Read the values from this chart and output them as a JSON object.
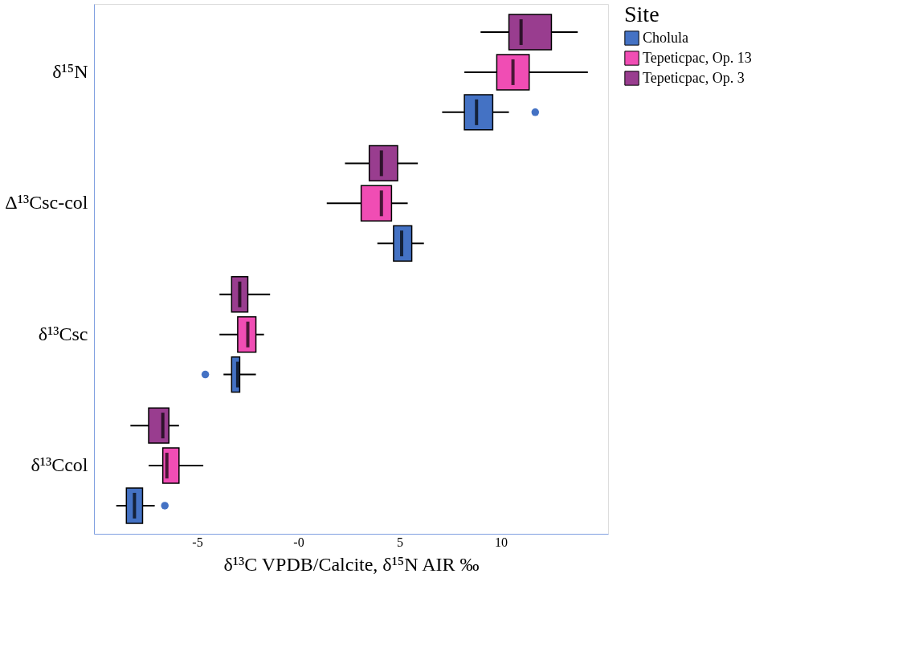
{
  "chart_data": {
    "type": "box",
    "orientation": "horizontal",
    "categories": [
      "δ¹⁵N",
      "Δ¹³Csc-col",
      "δ¹³Csc",
      "δ¹³Ccol"
    ],
    "xlabel": "δ¹³C VPDB/Calcite, δ¹⁵N AIR ‰",
    "legend_title": "Site",
    "legend": "right",
    "grid": false,
    "xlim": [
      -10.1,
      15.3
    ],
    "xticks": [
      -5,
      {
        "value": 0,
        "label": "-0"
      },
      5,
      10
    ],
    "series": [
      {
        "name": "Cholula",
        "color": "#4472c4",
        "boxes": [
          {
            "low": 7.1,
            "q1": 8.2,
            "median": 8.8,
            "q3": 9.6,
            "high": 10.4,
            "outliers": [
              11.7
            ]
          },
          {
            "low": 3.9,
            "q1": 4.7,
            "median": 5.1,
            "q3": 5.6,
            "high": 6.2
          },
          {
            "low": -3.7,
            "q1": -3.3,
            "median": -3.0,
            "q3": -2.9,
            "high": -2.1,
            "outliers": [
              -4.6
            ]
          },
          {
            "low": -9.0,
            "q1": -8.5,
            "median": -8.1,
            "q3": -7.7,
            "high": -7.1,
            "outliers": [
              -6.6
            ]
          }
        ]
      },
      {
        "name": "Tepeticpac, Op. 13",
        "color": "#f04db4",
        "boxes": [
          {
            "low": 8.2,
            "q1": 9.8,
            "median": 10.6,
            "q3": 11.4,
            "high": 14.3
          },
          {
            "low": 1.4,
            "q1": 3.1,
            "median": 4.1,
            "q3": 4.6,
            "high": 5.4
          },
          {
            "low": -3.9,
            "q1": -3.0,
            "median": -2.5,
            "q3": -2.1,
            "high": -1.7
          },
          {
            "low": -7.4,
            "q1": -6.7,
            "median": -6.5,
            "q3": -5.9,
            "high": -4.7
          }
        ]
      },
      {
        "name": "Tepeticpac, Op. 3",
        "color": "#993d8f",
        "boxes": [
          {
            "low": 9.0,
            "q1": 10.4,
            "median": 11.0,
            "q3": 12.5,
            "high": 13.8
          },
          {
            "low": 2.3,
            "q1": 3.5,
            "median": 4.1,
            "q3": 4.9,
            "high": 5.9
          },
          {
            "low": -3.9,
            "q1": -3.3,
            "median": -2.9,
            "q3": -2.5,
            "high": -1.4
          },
          {
            "low": -8.3,
            "q1": -7.4,
            "median": -6.7,
            "q3": -6.4,
            "high": -5.9
          }
        ]
      }
    ]
  }
}
